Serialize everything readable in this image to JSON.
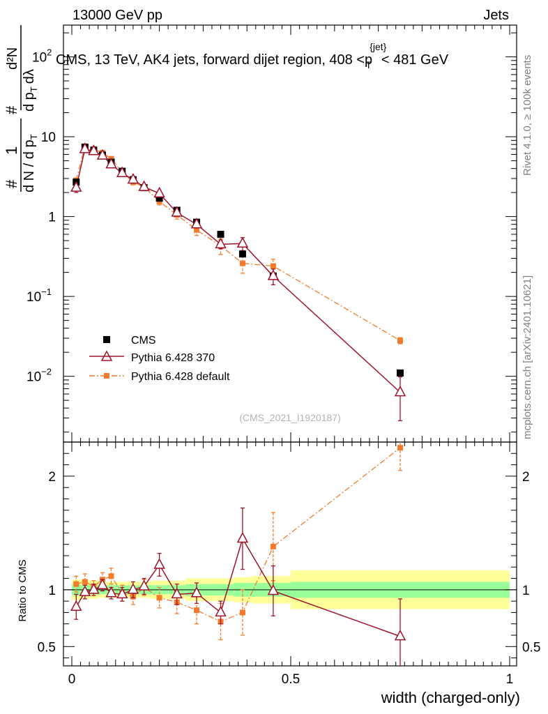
{
  "header": {
    "energy": "13000 GeV pp",
    "category": "Jets"
  },
  "side": {
    "rivet": "Rivet 4.1.0, ≥ 100k events",
    "ref": "mcplots.cern.ch [arXiv:2401.10621]"
  },
  "watermark": "(CMS_2021_I1920187)",
  "title": {
    "main": "CMS, 13 TeV, AK4 jets, forward dijet region, 408 <p",
    "sup": "{jet}",
    "sub": "T",
    "tail": "< 481 GeV"
  },
  "ylabel": {
    "top": "1",
    "bottom": "d N / d p",
    "bottom_sub": "T",
    "right_num": "d²N",
    "right_den": "d p",
    "right_den_sub": "T",
    "right_den2": "dλ",
    "hash1": "#",
    "hash2": "#"
  },
  "ratio_ylabel": "Ratio to CMS",
  "xlabel": "width (charged-only)",
  "colors": {
    "cms": "#000000",
    "tune370": "#a0122b",
    "default": "#f47a2c",
    "band_inner": "#99ff99",
    "band_outer": "#ffff99"
  },
  "chart_data": {
    "type": "scatter",
    "xlim": [
      0,
      1
    ],
    "main_ylim": [
      0.0015,
      250
    ],
    "main_yscale": "log",
    "ratio_ylim": [
      0.33,
      2.3
    ],
    "xticks": [
      {
        "v": 0,
        "label": "0"
      },
      {
        "v": 0.5,
        "label": "0.5"
      },
      {
        "v": 1,
        "label": "1"
      }
    ],
    "main_yticks": [
      {
        "v": 100,
        "base": "10",
        "exp": "2"
      },
      {
        "v": 10,
        "base": "10",
        "exp": ""
      },
      {
        "v": 1,
        "base": "1",
        "exp": ""
      },
      {
        "v": 0.1,
        "base": "10",
        "exp": "−1"
      },
      {
        "v": 0.01,
        "base": "10",
        "exp": "−2"
      }
    ],
    "ratio_yticks": [
      {
        "v": 0.5,
        "label": "0.5"
      },
      {
        "v": 1,
        "label": "1"
      },
      {
        "v": 2,
        "label": "2"
      }
    ],
    "bins": [
      {
        "lo": 0.0,
        "hi": 0.02,
        "x": 0.01
      },
      {
        "lo": 0.02,
        "hi": 0.04,
        "x": 0.03
      },
      {
        "lo": 0.04,
        "hi": 0.06,
        "x": 0.05
      },
      {
        "lo": 0.06,
        "hi": 0.08,
        "x": 0.07
      },
      {
        "lo": 0.08,
        "hi": 0.1,
        "x": 0.09
      },
      {
        "lo": 0.1,
        "hi": 0.13,
        "x": 0.115
      },
      {
        "lo": 0.13,
        "hi": 0.15,
        "x": 0.14
      },
      {
        "lo": 0.15,
        "hi": 0.18,
        "x": 0.165
      },
      {
        "lo": 0.18,
        "hi": 0.22,
        "x": 0.2
      },
      {
        "lo": 0.22,
        "hi": 0.26,
        "x": 0.24
      },
      {
        "lo": 0.26,
        "hi": 0.31,
        "x": 0.285
      },
      {
        "lo": 0.31,
        "hi": 0.37,
        "x": 0.34
      },
      {
        "lo": 0.37,
        "hi": 0.41,
        "x": 0.39
      },
      {
        "lo": 0.41,
        "hi": 0.5,
        "x": 0.46
      },
      {
        "lo": 0.5,
        "hi": 1.0,
        "x": 0.75
      }
    ],
    "cms": {
      "name": "CMS",
      "values": [
        2.7,
        7.4,
        6.8,
        5.9,
        4.8,
        3.7,
        2.9,
        2.3,
        1.7,
        1.2,
        0.85,
        0.6,
        0.34,
        0.18,
        0.011
      ],
      "band_inner": [
        0.05,
        0.04,
        0.04,
        0.04,
        0.04,
        0.04,
        0.04,
        0.04,
        0.04,
        0.04,
        0.05,
        0.05,
        0.06,
        0.06,
        0.07
      ],
      "band_outer": [
        0.09,
        0.08,
        0.08,
        0.07,
        0.07,
        0.07,
        0.07,
        0.07,
        0.08,
        0.08,
        0.1,
        0.1,
        0.11,
        0.12,
        0.17
      ]
    },
    "series": [
      {
        "name": "Pythia 6.428 370",
        "values": [
          2.3,
          7.0,
          6.6,
          5.8,
          4.5,
          3.5,
          2.9,
          2.35,
          1.95,
          1.12,
          0.8,
          0.45,
          0.46,
          0.18,
          0.0063
        ],
        "ratio": [
          0.85,
          0.98,
          1.0,
          1.04,
          0.97,
          0.96,
          1.0,
          1.03,
          1.22,
          0.96,
          0.97,
          0.8,
          1.45,
          0.99,
          0.59
        ],
        "ratio_err": [
          0.11,
          0.06,
          0.05,
          0.05,
          0.05,
          0.06,
          0.07,
          0.07,
          0.1,
          0.09,
          0.09,
          0.1,
          0.27,
          0.22,
          0.33
        ]
      },
      {
        "name": "Pythia 6.428 default",
        "values": [
          2.85,
          7.6,
          7.0,
          6.3,
          5.3,
          3.6,
          2.7,
          2.35,
          1.55,
          1.05,
          0.68,
          0.43,
          0.26,
          0.24,
          0.028
        ],
        "ratio": [
          1.05,
          1.07,
          1.03,
          1.09,
          1.12,
          0.97,
          0.94,
          1.02,
          0.93,
          0.89,
          0.82,
          0.72,
          0.8,
          1.38,
          2.25
        ],
        "ratio_err": [
          0.07,
          0.07,
          0.05,
          0.06,
          0.07,
          0.07,
          0.07,
          0.07,
          0.09,
          0.1,
          0.12,
          0.16,
          0.2,
          0.3,
          0.2
        ]
      }
    ]
  }
}
